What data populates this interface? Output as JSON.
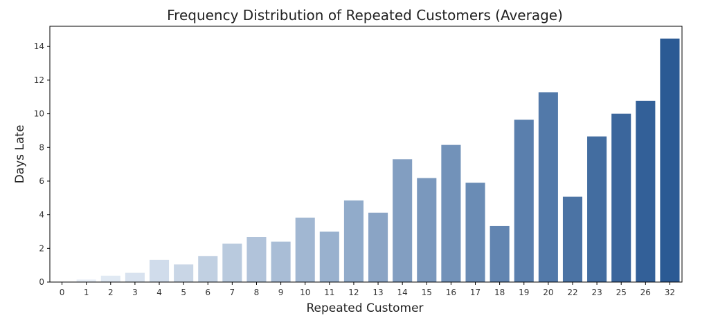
{
  "chart_data": {
    "type": "bar",
    "title": "Frequency Distribution of Repeated Customers (Average)",
    "xlabel": "Repeated Customer",
    "ylabel": "Days Late",
    "categories": [
      "0",
      "1",
      "2",
      "3",
      "4",
      "5",
      "6",
      "7",
      "8",
      "9",
      "10",
      "11",
      "12",
      "13",
      "14",
      "15",
      "16",
      "17",
      "18",
      "19",
      "20",
      "22",
      "23",
      "25",
      "26",
      "32"
    ],
    "values": [
      0.0,
      0.15,
      0.38,
      0.55,
      1.32,
      1.05,
      1.55,
      2.28,
      2.67,
      2.4,
      3.83,
      3.0,
      4.85,
      4.12,
      7.3,
      6.18,
      8.15,
      5.9,
      3.33,
      9.65,
      11.28,
      5.07,
      8.65,
      10.0,
      10.77,
      14.47
    ],
    "yticks": [
      0,
      2,
      4,
      6,
      8,
      10,
      12,
      14
    ],
    "ylim": [
      0,
      15.2
    ],
    "grid": false,
    "palette": {
      "start": "#f0f5fb",
      "end": "#2b5a94"
    }
  }
}
